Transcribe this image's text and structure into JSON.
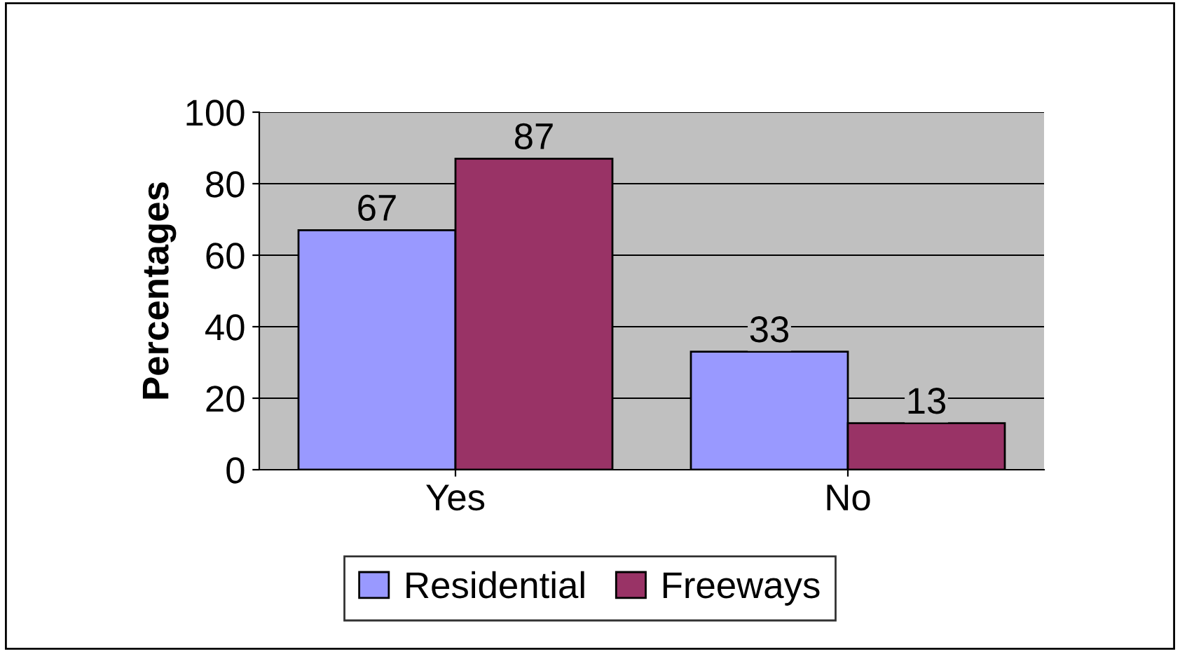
{
  "chart_data": {
    "type": "bar",
    "ylabel": "Percentages",
    "categories": [
      "Yes",
      "No"
    ],
    "series": [
      {
        "name": "Residential",
        "color": "#9999ff",
        "values": [
          67,
          33
        ]
      },
      {
        "name": "Freeways",
        "color": "#993366",
        "values": [
          87,
          13
        ]
      }
    ],
    "ylim": [
      0,
      100
    ],
    "yticks": [
      0,
      20,
      40,
      60,
      80,
      100
    ],
    "grid": "y",
    "legend": "bottom",
    "data_labels": true
  }
}
